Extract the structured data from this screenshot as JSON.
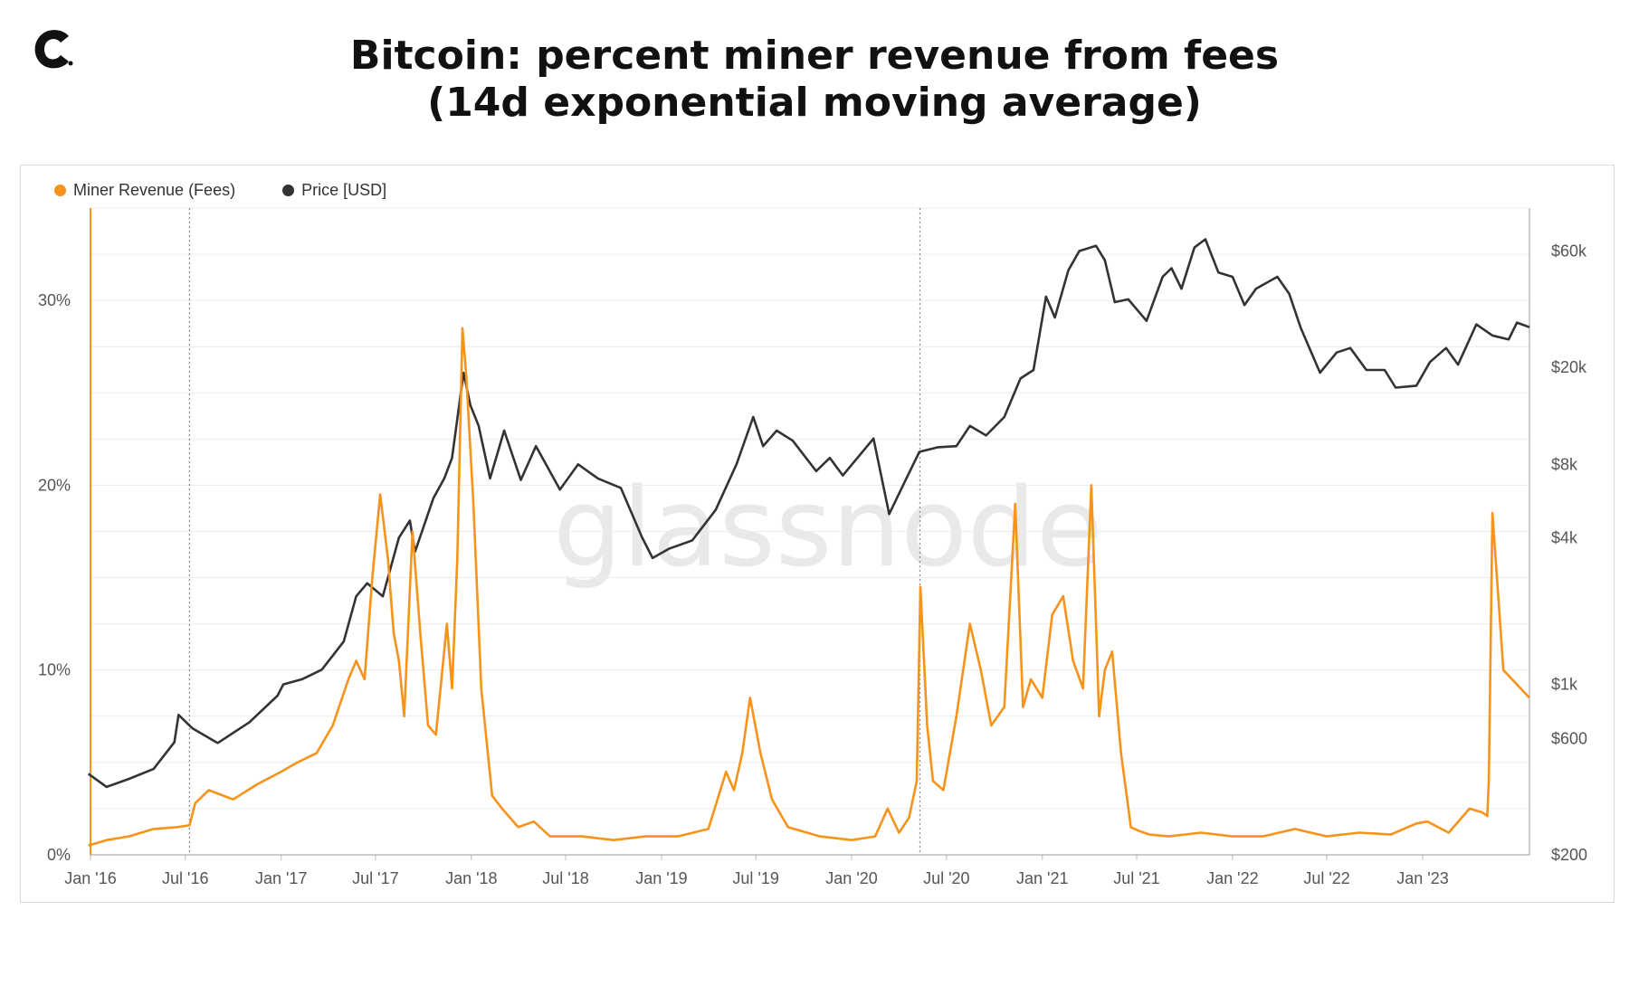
{
  "header": {
    "title_line1": "Bitcoin: percent miner revenue from fees",
    "title_line2": "(14d exponential moving average)"
  },
  "logo": {
    "icon": "brand-c-logo-icon"
  },
  "watermark": "glassnode",
  "colors": {
    "fees": "#f7931a",
    "price": "#333333",
    "grid": "#ececec"
  },
  "chart_data": {
    "type": "line",
    "title": "Bitcoin: percent miner revenue from fees (14d exponential moving average)",
    "legend_position": "top-left",
    "grid": true,
    "x_ticks": [
      "Jan '16",
      "Jul '16",
      "Jan '17",
      "Jul '17",
      "Jan '18",
      "Jul '18",
      "Jan '19",
      "Jul '19",
      "Jan '20",
      "Jul '20",
      "Jan '21",
      "Jul '21",
      "Jan '22",
      "Jul '22",
      "Jan '23"
    ],
    "x_range": [
      "2016-01-01",
      "2023-07-25"
    ],
    "y_left": {
      "ticks": [
        "0%",
        "10%",
        "20%",
        "30%"
      ],
      "ylim": [
        0,
        35
      ],
      "unit": "%"
    },
    "y_right": {
      "scale": "log",
      "ticks": [
        "$200",
        "$600",
        "$1k",
        "$4k",
        "$8k",
        "$20k",
        "$60k"
      ],
      "tick_values": [
        200,
        600,
        1000,
        4000,
        8000,
        20000,
        60000
      ],
      "ylim": [
        200,
        90000
      ]
    },
    "markers": [
      "2016-07-09",
      "2020-05-11"
    ],
    "series": [
      {
        "name": "Miner Revenue (Fees)",
        "axis": "left",
        "x": [
          "2015-12-28",
          "2016-02-01",
          "2016-03-15",
          "2016-05-01",
          "2016-06-15",
          "2016-07-09",
          "2016-07-20",
          "2016-08-15",
          "2016-10-01",
          "2016-11-15",
          "2017-01-01",
          "2017-02-01",
          "2017-03-10",
          "2017-04-10",
          "2017-05-10",
          "2017-05-25",
          "2017-06-10",
          "2017-06-25",
          "2017-07-10",
          "2017-07-25",
          "2017-08-05",
          "2017-08-15",
          "2017-08-25",
          "2017-09-10",
          "2017-09-25",
          "2017-10-10",
          "2017-10-25",
          "2017-11-15",
          "2017-11-25",
          "2017-12-05",
          "2017-12-15",
          "2017-12-22",
          "2018-01-05",
          "2018-01-20",
          "2018-02-10",
          "2018-03-01",
          "2018-04-01",
          "2018-05-01",
          "2018-06-01",
          "2018-08-01",
          "2018-10-01",
          "2018-12-01",
          "2019-02-01",
          "2019-04-01",
          "2019-05-05",
          "2019-05-20",
          "2019-06-05",
          "2019-06-20",
          "2019-07-10",
          "2019-08-01",
          "2019-09-01",
          "2019-11-01",
          "2020-01-01",
          "2020-02-15",
          "2020-03-10",
          "2020-04-01",
          "2020-04-20",
          "2020-05-05",
          "2020-05-12",
          "2020-05-25",
          "2020-06-05",
          "2020-06-25",
          "2020-07-20",
          "2020-08-15",
          "2020-09-05",
          "2020-09-25",
          "2020-10-20",
          "2020-11-10",
          "2020-11-25",
          "2020-12-10",
          "2021-01-01",
          "2021-01-20",
          "2021-02-10",
          "2021-03-01",
          "2021-03-20",
          "2021-04-05",
          "2021-04-20",
          "2021-05-01",
          "2021-05-15",
          "2021-06-01",
          "2021-06-20",
          "2021-07-05",
          "2021-07-25",
          "2021-09-01",
          "2021-11-01",
          "2022-01-01",
          "2022-03-01",
          "2022-05-01",
          "2022-07-01",
          "2022-09-01",
          "2022-11-01",
          "2022-12-20",
          "2023-01-10",
          "2023-02-20",
          "2023-04-01",
          "2023-04-25",
          "2023-05-05",
          "2023-05-08",
          "2023-05-15",
          "2023-06-05",
          "2023-07-25"
        ],
        "values": [
          0.5,
          0.8,
          1.0,
          1.4,
          1.5,
          1.6,
          2.8,
          3.5,
          3.0,
          3.8,
          4.5,
          5.0,
          5.5,
          7.0,
          9.5,
          10.5,
          9.5,
          15.0,
          19.5,
          16.0,
          12.0,
          10.5,
          7.5,
          17.5,
          12.0,
          7.0,
          6.5,
          12.5,
          9.0,
          16.0,
          28.5,
          26.0,
          19.0,
          9.0,
          3.2,
          2.5,
          1.5,
          1.8,
          1.0,
          1.0,
          0.8,
          1.0,
          1.0,
          1.4,
          4.5,
          3.5,
          5.5,
          8.5,
          5.5,
          3.0,
          1.5,
          1.0,
          0.8,
          1.0,
          2.5,
          1.2,
          2.0,
          4.0,
          14.5,
          7.0,
          4.0,
          3.5,
          7.5,
          12.5,
          10.0,
          7.0,
          8.0,
          19.0,
          8.0,
          9.5,
          8.5,
          13.0,
          14.0,
          10.5,
          9.0,
          20.0,
          7.5,
          10.0,
          11.0,
          5.5,
          1.5,
          1.3,
          1.1,
          1.0,
          1.2,
          1.0,
          1.0,
          1.4,
          1.0,
          1.2,
          1.1,
          1.7,
          1.8,
          1.2,
          2.5,
          2.3,
          2.1,
          4.0,
          18.5,
          10.0,
          8.5
        ]
      },
      {
        "name": "Price [USD]",
        "axis": "right",
        "x": [
          "2015-12-28",
          "2016-02-01",
          "2016-03-15",
          "2016-05-01",
          "2016-06-10",
          "2016-06-18",
          "2016-07-15",
          "2016-09-01",
          "2016-11-01",
          "2016-12-25",
          "2017-01-05",
          "2017-02-10",
          "2017-03-20",
          "2017-05-01",
          "2017-05-25",
          "2017-06-15",
          "2017-07-15",
          "2017-08-15",
          "2017-09-05",
          "2017-09-15",
          "2017-10-20",
          "2017-11-10",
          "2017-11-25",
          "2017-12-17",
          "2017-12-30",
          "2018-01-15",
          "2018-02-06",
          "2018-03-05",
          "2018-04-06",
          "2018-05-05",
          "2018-06-20",
          "2018-07-25",
          "2018-09-01",
          "2018-10-15",
          "2018-11-25",
          "2018-12-15",
          "2019-01-15",
          "2019-03-01",
          "2019-04-15",
          "2019-05-25",
          "2019-06-26",
          "2019-07-15",
          "2019-08-10",
          "2019-09-10",
          "2019-10-25",
          "2019-11-20",
          "2019-12-15",
          "2020-02-12",
          "2020-03-13",
          "2020-04-15",
          "2020-05-10",
          "2020-06-15",
          "2020-07-20",
          "2020-08-15",
          "2020-09-15",
          "2020-10-20",
          "2020-11-20",
          "2020-12-15",
          "2021-01-08",
          "2021-01-25",
          "2021-02-20",
          "2021-03-13",
          "2021-04-14",
          "2021-05-01",
          "2021-05-20",
          "2021-06-15",
          "2021-07-20",
          "2021-08-20",
          "2021-09-06",
          "2021-09-25",
          "2021-10-20",
          "2021-11-10",
          "2021-12-05",
          "2022-01-01",
          "2022-01-24",
          "2022-02-15",
          "2022-03-28",
          "2022-04-20",
          "2022-05-12",
          "2022-06-18",
          "2022-07-20",
          "2022-08-15",
          "2022-09-15",
          "2022-10-20",
          "2022-11-10",
          "2022-12-20",
          "2023-01-15",
          "2023-02-15",
          "2023-03-10",
          "2023-04-14",
          "2023-05-15",
          "2023-06-15",
          "2023-07-01",
          "2023-07-25"
        ],
        "values": [
          430,
          380,
          410,
          450,
          580,
          750,
          660,
          575,
          700,
          900,
          1000,
          1050,
          1150,
          1500,
          2300,
          2600,
          2300,
          4000,
          4700,
          3500,
          5800,
          7000,
          8500,
          19000,
          14000,
          11500,
          7000,
          11000,
          6900,
          9500,
          6300,
          8000,
          7000,
          6400,
          4000,
          3300,
          3600,
          3900,
          5200,
          8000,
          12500,
          9500,
          11000,
          10000,
          7500,
          8500,
          7200,
          10200,
          5000,
          7000,
          9000,
          9400,
          9500,
          11500,
          10500,
          12500,
          18000,
          19500,
          39000,
          32000,
          50000,
          60000,
          63000,
          55000,
          37000,
          38000,
          31000,
          47000,
          51000,
          42000,
          62000,
          67000,
          49000,
          47000,
          36000,
          42000,
          47000,
          40000,
          29000,
          19000,
          23000,
          24000,
          19500,
          19500,
          16500,
          16800,
          21000,
          24000,
          20500,
          30000,
          27000,
          26000,
          30500,
          29200
        ]
      }
    ]
  }
}
